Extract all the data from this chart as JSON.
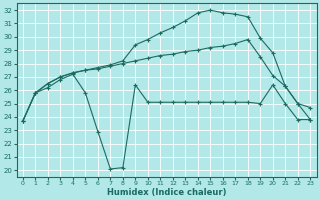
{
  "xlabel": "Humidex (Indice chaleur)",
  "bg_color": "#b2e8e8",
  "grid_color": "#ffffff",
  "line_color": "#1a6b60",
  "xlim": [
    -0.5,
    23.5
  ],
  "ylim": [
    19.5,
    32.5
  ],
  "xticks": [
    0,
    1,
    2,
    3,
    4,
    5,
    6,
    7,
    8,
    9,
    10,
    11,
    12,
    13,
    14,
    15,
    16,
    17,
    18,
    19,
    20,
    21,
    22,
    23
  ],
  "yticks": [
    20,
    21,
    22,
    23,
    24,
    25,
    26,
    27,
    28,
    29,
    30,
    31,
    32
  ],
  "series": [
    {
      "x": [
        0,
        1,
        2,
        3,
        4,
        5,
        6,
        7,
        8,
        9,
        10,
        11,
        12,
        13,
        14,
        15,
        16,
        17,
        18,
        19,
        20,
        21,
        22,
        23
      ],
      "y": [
        23.7,
        25.8,
        26.2,
        26.8,
        27.2,
        25.8,
        22.9,
        20.1,
        20.2,
        26.4,
        25.1,
        25.1,
        25.1,
        25.1,
        25.1,
        25.1,
        25.1,
        25.1,
        25.1,
        25.0,
        26.4,
        25.0,
        23.8,
        23.8
      ]
    },
    {
      "x": [
        0,
        1,
        2,
        3,
        4,
        5,
        6,
        7,
        8,
        9,
        10,
        11,
        12,
        13,
        14,
        15,
        16,
        17,
        18,
        19,
        20,
        21,
        22,
        23
      ],
      "y": [
        23.7,
        25.8,
        26.5,
        27.0,
        27.3,
        27.5,
        27.6,
        27.8,
        28.0,
        28.2,
        28.4,
        28.6,
        28.7,
        28.9,
        29.0,
        29.2,
        29.3,
        29.5,
        29.8,
        28.5,
        27.1,
        26.3,
        25.0,
        24.7
      ]
    },
    {
      "x": [
        0,
        1,
        2,
        3,
        4,
        5,
        6,
        7,
        8,
        9,
        10,
        11,
        12,
        13,
        14,
        15,
        16,
        17,
        18,
        19,
        20,
        21,
        22,
        23
      ],
      "y": [
        23.7,
        25.8,
        26.5,
        27.0,
        27.3,
        27.5,
        27.7,
        27.9,
        28.2,
        29.4,
        29.8,
        30.3,
        30.7,
        31.2,
        31.8,
        32.0,
        31.8,
        31.7,
        31.5,
        29.9,
        28.8,
        26.3,
        25.0,
        23.8
      ]
    }
  ]
}
